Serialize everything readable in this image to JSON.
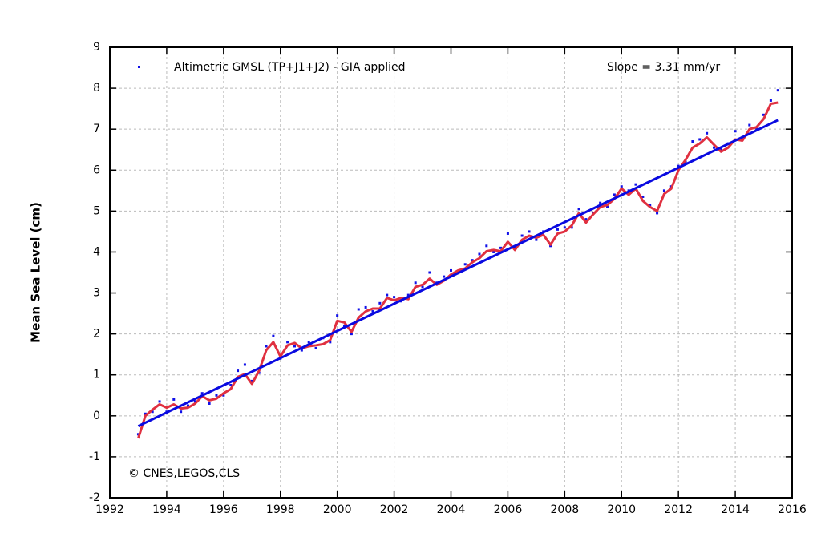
{
  "chart_data": {
    "type": "line",
    "ylabel": "Mean Sea Level (cm)",
    "annotations": [
      "Slope = 3.31 mm/yr",
      "© CNES,LEGOS,CLS"
    ],
    "xlim": [
      1992,
      2016
    ],
    "xticks": [
      1992,
      1994,
      1996,
      1998,
      2000,
      2002,
      2004,
      2006,
      2008,
      2010,
      2012,
      2014,
      2016
    ],
    "ylim": [
      -2,
      9
    ],
    "yticks": [
      -2,
      -1,
      0,
      1,
      2,
      3,
      4,
      5,
      6,
      7,
      8,
      9
    ],
    "grid": true,
    "legend": "top-left",
    "x": [
      1993,
      1993.25,
      1993.5,
      1993.75,
      1994,
      1994.25,
      1994.5,
      1994.75,
      1995,
      1995.25,
      1995.5,
      1995.75,
      1996,
      1996.25,
      1996.5,
      1996.75,
      1997,
      1997.25,
      1997.5,
      1997.75,
      1998,
      1998.25,
      1998.5,
      1998.75,
      1999,
      1999.25,
      1999.5,
      1999.75,
      2000,
      2000.25,
      2000.5,
      2000.75,
      2001,
      2001.25,
      2001.5,
      2001.75,
      2002,
      2002.25,
      2002.5,
      2002.75,
      2003,
      2003.25,
      2003.5,
      2003.75,
      2004,
      2004.25,
      2004.5,
      2004.75,
      2005,
      2005.25,
      2005.5,
      2005.75,
      2006,
      2006.25,
      2006.5,
      2006.75,
      2007,
      2007.25,
      2007.5,
      2007.75,
      2008,
      2008.25,
      2008.5,
      2008.75,
      2009,
      2009.25,
      2009.5,
      2009.75,
      2010,
      2010.25,
      2010.5,
      2010.75,
      2011,
      2011.25,
      2011.5,
      2011.75,
      2012,
      2012.25,
      2012.5,
      2012.75,
      2013,
      2013.25,
      2013.5,
      2013.75,
      2014,
      2014.25,
      2014.5,
      2014.75,
      2015,
      2015.25,
      2015.5
    ],
    "series": [
      {
        "name": "Altimetric GMSL (TP+J1+J2) - GIA applied",
        "style": "dots",
        "color": "#1010e8",
        "values": [
          -0.45,
          0.05,
          0.1,
          0.35,
          0.1,
          0.4,
          0.1,
          0.25,
          0.35,
          0.55,
          0.3,
          0.5,
          0.5,
          0.75,
          1.1,
          1.25,
          0.85,
          1.05,
          1.7,
          1.95,
          1.4,
          1.8,
          1.7,
          1.6,
          1.8,
          1.65,
          1.9,
          1.8,
          2.45,
          2.2,
          2.0,
          2.6,
          2.65,
          2.55,
          2.75,
          2.95,
          2.9,
          2.8,
          2.95,
          3.25,
          3.15,
          3.5,
          3.25,
          3.4,
          3.55,
          3.5,
          3.7,
          3.8,
          3.95,
          4.15,
          4.0,
          4.1,
          4.45,
          4.1,
          4.4,
          4.5,
          4.3,
          4.5,
          4.15,
          4.55,
          4.6,
          4.6,
          5.05,
          4.8,
          4.95,
          5.2,
          5.1,
          5.4,
          5.6,
          5.5,
          5.65,
          5.35,
          5.15,
          4.95,
          5.5,
          5.6,
          6.1,
          6.2,
          6.7,
          6.75,
          6.9,
          6.55,
          6.5,
          6.65,
          6.95,
          6.8,
          7.1,
          7.0,
          7.35,
          7.7,
          7.95
        ]
      },
      {
        "style": "line",
        "color": "#e03040",
        "values": [
          -0.55,
          0.0,
          0.15,
          0.28,
          0.2,
          0.28,
          0.18,
          0.2,
          0.3,
          0.48,
          0.38,
          0.42,
          0.55,
          0.65,
          0.95,
          1.02,
          0.78,
          1.1,
          1.6,
          1.8,
          1.45,
          1.72,
          1.78,
          1.65,
          1.7,
          1.72,
          1.75,
          1.85,
          2.32,
          2.28,
          2.05,
          2.4,
          2.55,
          2.62,
          2.62,
          2.88,
          2.82,
          2.88,
          2.85,
          3.15,
          3.2,
          3.35,
          3.2,
          3.3,
          3.45,
          3.55,
          3.6,
          3.75,
          3.85,
          4.02,
          4.05,
          4.02,
          4.25,
          4.05,
          4.3,
          4.4,
          4.35,
          4.42,
          4.18,
          4.45,
          4.5,
          4.65,
          4.95,
          4.72,
          4.92,
          5.1,
          5.15,
          5.3,
          5.55,
          5.4,
          5.55,
          5.25,
          5.1,
          5.0,
          5.42,
          5.55,
          6.0,
          6.25,
          6.55,
          6.65,
          6.8,
          6.62,
          6.45,
          6.55,
          6.75,
          6.72,
          7.0,
          7.05,
          7.25,
          7.62,
          7.65
        ]
      },
      {
        "style": "line",
        "color": "#0a0ae0",
        "x": [
          1993,
          2015.5
        ],
        "values": [
          -0.25,
          7.22
        ]
      }
    ]
  }
}
